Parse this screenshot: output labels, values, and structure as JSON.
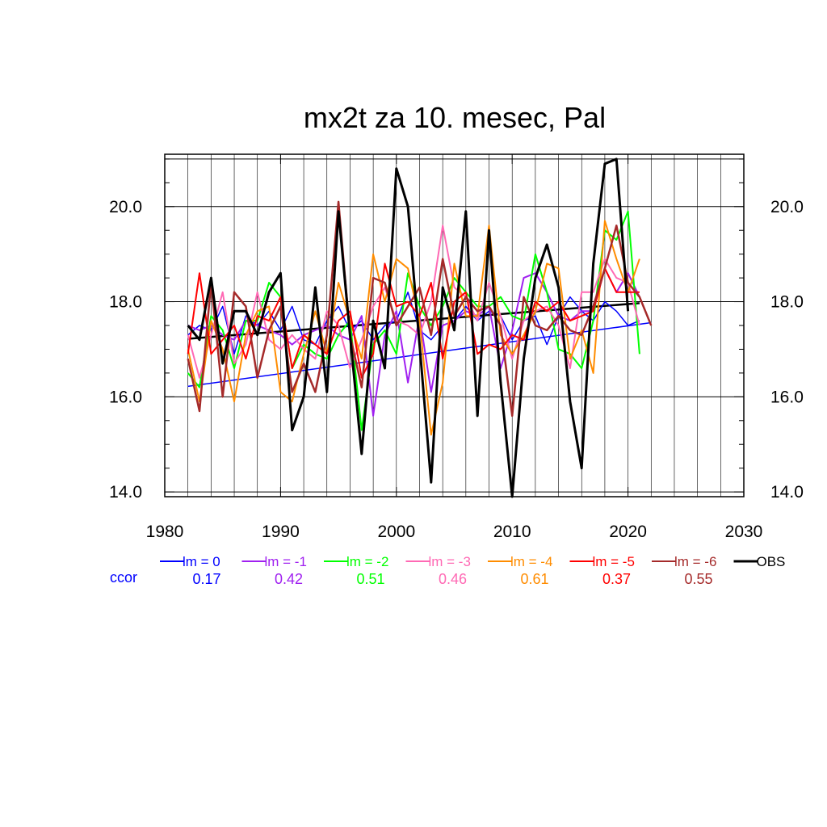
{
  "chart_data": {
    "type": "line",
    "title": "mx2t za 10. mesec, Pal",
    "xlabel": "",
    "ylabel": "",
    "xlim": [
      1980,
      2030
    ],
    "ylim": [
      13.9,
      21.1
    ],
    "x_ticks": [
      1980,
      1990,
      2000,
      2010,
      2020,
      2030
    ],
    "x_tick_labels": [
      "1980",
      "1990",
      "2000",
      "2010",
      "2020",
      "2030"
    ],
    "y_ticks": [
      14,
      16,
      18,
      20
    ],
    "y_tick_labels": [
      "14.0",
      "16.0",
      "18.0",
      "20.0"
    ],
    "y_tick_labels_right": [
      "14.0",
      "16.0",
      "18.0",
      "20.0"
    ],
    "x_minor_step": 2,
    "y_minor_step": 0.5,
    "grid": true,
    "legend_position": "bottom",
    "ccor_label": "ccor",
    "ccor_color": "#0000ff",
    "series": [
      {
        "name": "lm = 0",
        "color": "#0000ff",
        "width": 1.5,
        "ccor": "0.17",
        "x": [
          1982,
          1983,
          1984,
          1985,
          1986,
          1987,
          1988,
          1989,
          1990,
          1991,
          1992,
          1993,
          1994,
          1995,
          1996,
          1997,
          1998,
          1999,
          2000,
          2001,
          2002,
          2003,
          2004,
          2005,
          2006,
          2007,
          2008,
          2009,
          2010,
          2011,
          2012,
          2013,
          2014,
          2015,
          2016,
          2017,
          2018,
          2019,
          2020,
          2021
        ],
        "y": [
          17.3,
          17.5,
          17.4,
          17.9,
          16.9,
          17.7,
          17.5,
          17.8,
          17.4,
          17.9,
          17.2,
          17.1,
          17.6,
          17.9,
          17.4,
          17.6,
          17.2,
          17.5,
          17.6,
          18.2,
          17.4,
          17.2,
          17.5,
          17.6,
          17.9,
          17.6,
          17.8,
          17.7,
          17.2,
          17.6,
          17.7,
          17.1,
          17.7,
          18.1,
          17.8,
          17.6,
          18.0,
          17.8,
          17.5,
          17.6
        ],
        "trend": [
          16.22,
          17.56
        ]
      },
      {
        "name": "lm = -1",
        "color": "#a020f0",
        "width": 2,
        "ccor": "0.42",
        "x": [
          1982,
          1983,
          1984,
          1985,
          1986,
          1987,
          1988,
          1989,
          1990,
          1991,
          1992,
          1993,
          1994,
          1995,
          1996,
          1997,
          1998,
          1999,
          2000,
          2001,
          2002,
          2003,
          2004,
          2005,
          2006,
          2007,
          2008,
          2009,
          2010,
          2011,
          2012,
          2013,
          2014,
          2015,
          2016,
          2017,
          2018,
          2019,
          2020,
          2021
        ],
        "y": [
          17.5,
          17.4,
          17.5,
          17.3,
          17.2,
          17.6,
          17.5,
          17.4,
          17.3,
          17.1,
          17.3,
          17.4,
          17.5,
          17.3,
          17.2,
          17.7,
          15.6,
          17.3,
          17.8,
          16.3,
          17.7,
          16.1,
          17.5,
          17.6,
          17.8,
          17.7,
          17.9,
          16.6,
          17.4,
          18.5,
          18.6,
          18.2,
          17.7,
          17.6,
          17.8,
          17.8,
          18.7,
          18.2,
          18.6,
          18.1
        ]
      },
      {
        "name": "lm = -2",
        "color": "#00ff00",
        "width": 2,
        "ccor": "0.51",
        "x": [
          1982,
          1983,
          1984,
          1985,
          1986,
          1987,
          1988,
          1989,
          1990,
          1991,
          1992,
          1993,
          1994,
          1995,
          1996,
          1997,
          1998,
          1999,
          2000,
          2001,
          2002,
          2003,
          2004,
          2005,
          2006,
          2007,
          2008,
          2009,
          2010,
          2011,
          2012,
          2013,
          2014,
          2015,
          2016,
          2017,
          2018,
          2019,
          2020,
          2021
        ],
        "y": [
          16.5,
          16.2,
          17.7,
          17.4,
          16.6,
          17.6,
          17.6,
          18.4,
          18.1,
          16.6,
          17.1,
          16.9,
          16.8,
          17.3,
          17.6,
          15.3,
          17.1,
          17.4,
          16.9,
          18.6,
          17.9,
          17.5,
          17.9,
          18.5,
          18.2,
          17.9,
          17.9,
          18.1,
          17.7,
          17.6,
          19.0,
          18.2,
          17.0,
          16.9,
          16.6,
          17.6,
          19.5,
          19.3,
          19.9,
          16.9
        ]
      },
      {
        "name": "lm = -3",
        "color": "#ff69b4",
        "width": 2,
        "ccor": "0.46",
        "x": [
          1982,
          1983,
          1984,
          1985,
          1986,
          1987,
          1988,
          1989,
          1990,
          1991,
          1992,
          1993,
          1994,
          1995,
          1996,
          1997,
          1998,
          1999,
          2000,
          2001,
          2002,
          2003,
          2004,
          2005,
          2006,
          2007,
          2008,
          2009,
          2010,
          2011,
          2012,
          2013,
          2014,
          2015,
          2016,
          2017,
          2018,
          2019,
          2020,
          2021
        ],
        "y": [
          17.3,
          16.4,
          17.3,
          18.2,
          16.7,
          17.1,
          18.2,
          17.2,
          17.0,
          17.3,
          17.0,
          16.8,
          17.8,
          17.5,
          16.6,
          17.2,
          17.9,
          18.3,
          17.6,
          17.5,
          17.3,
          18.0,
          19.6,
          18.3,
          18.1,
          17.6,
          18.4,
          17.7,
          16.8,
          17.6,
          17.8,
          17.9,
          17.5,
          16.6,
          18.2,
          18.2,
          18.9,
          18.5,
          18.4,
          17.5
        ]
      },
      {
        "name": "lm = -4",
        "color": "#ff8c00",
        "width": 2,
        "ccor": "0.61",
        "x": [
          1982,
          1983,
          1984,
          1985,
          1986,
          1987,
          1988,
          1989,
          1990,
          1991,
          1992,
          1993,
          1994,
          1995,
          1996,
          1997,
          1998,
          1999,
          2000,
          2001,
          2002,
          2003,
          2004,
          2005,
          2006,
          2007,
          2008,
          2009,
          2010,
          2011,
          2012,
          2013,
          2014,
          2015,
          2016,
          2017,
          2018,
          2019,
          2020,
          2021
        ],
        "y": [
          17.0,
          15.9,
          17.6,
          17.0,
          15.9,
          17.3,
          17.8,
          17.9,
          16.1,
          15.9,
          16.9,
          17.8,
          16.9,
          18.4,
          17.6,
          16.8,
          19.0,
          18.0,
          18.9,
          18.7,
          17.6,
          15.2,
          16.3,
          18.8,
          17.7,
          17.7,
          19.6,
          17.3,
          16.9,
          17.3,
          17.8,
          18.8,
          18.7,
          16.8,
          17.4,
          16.5,
          19.7,
          18.9,
          18.2,
          18.9
        ]
      },
      {
        "name": "lm = -5",
        "color": "#ff0000",
        "width": 2,
        "ccor": "0.37",
        "x": [
          1982,
          1983,
          1984,
          1985,
          1986,
          1987,
          1988,
          1989,
          1990,
          1991,
          1992,
          1993,
          1994,
          1995,
          1996,
          1997,
          1998,
          1999,
          2000,
          2001,
          2002,
          2003,
          2004,
          2005,
          2006,
          2007,
          2008,
          2009,
          2010,
          2011,
          2012,
          2013,
          2014,
          2015,
          2016,
          2017,
          2018,
          2019,
          2020,
          2021
        ],
        "y": [
          16.9,
          18.6,
          16.9,
          17.2,
          17.5,
          16.8,
          17.7,
          17.6,
          18.1,
          16.6,
          17.3,
          17.1,
          16.9,
          17.6,
          17.8,
          16.4,
          16.9,
          18.8,
          17.9,
          18.0,
          17.7,
          18.4,
          16.8,
          18.0,
          18.2,
          16.9,
          17.1,
          17.0,
          17.3,
          17.2,
          18.0,
          17.8,
          18.0,
          17.6,
          17.7,
          17.8,
          18.7,
          18.2,
          18.2,
          18.2
        ]
      },
      {
        "name": "lm = -6",
        "color": "#a52a2a",
        "width": 2.5,
        "ccor": "0.55",
        "x": [
          1982,
          1983,
          1984,
          1985,
          1986,
          1987,
          1988,
          1989,
          1990,
          1991,
          1992,
          1993,
          1994,
          1995,
          1996,
          1997,
          1998,
          1999,
          2000,
          2001,
          2002,
          2003,
          2004,
          2005,
          2006,
          2007,
          2008,
          2009,
          2010,
          2011,
          2012,
          2013,
          2014,
          2015,
          2016,
          2017,
          2018,
          2019,
          2020,
          2021,
          2022
        ],
        "y": [
          16.8,
          15.7,
          18.4,
          16.0,
          18.2,
          17.9,
          16.4,
          17.4,
          17.9,
          16.1,
          16.7,
          16.1,
          17.3,
          20.1,
          17.3,
          16.2,
          18.5,
          18.4,
          17.5,
          17.9,
          18.3,
          17.3,
          18.9,
          17.7,
          18.1,
          17.8,
          17.9,
          17.5,
          15.6,
          18.1,
          17.5,
          17.4,
          17.7,
          17.4,
          17.3,
          17.9,
          18.7,
          19.6,
          18.4,
          18.1,
          17.5
        ]
      },
      {
        "name": "OBS",
        "color": "#000000",
        "width": 3,
        "ccor": "",
        "x": [
          1982,
          1983,
          1984,
          1985,
          1986,
          1987,
          1988,
          1989,
          1990,
          1991,
          1992,
          1993,
          1994,
          1995,
          1996,
          1997,
          1998,
          1999,
          2000,
          2001,
          2002,
          2003,
          2004,
          2005,
          2006,
          2007,
          2008,
          2009,
          2010,
          2011,
          2012,
          2013,
          2014,
          2015,
          2016,
          2017,
          2018,
          2019,
          2020
        ],
        "y": [
          17.5,
          17.2,
          18.5,
          16.7,
          17.8,
          17.8,
          17.3,
          18.2,
          18.6,
          15.3,
          16.0,
          18.3,
          16.1,
          19.9,
          17.3,
          14.8,
          17.6,
          16.6,
          20.8,
          20.0,
          17.1,
          14.2,
          18.3,
          17.4,
          19.9,
          15.6,
          19.5,
          16.3,
          13.9,
          16.8,
          18.5,
          19.2,
          18.3,
          15.9,
          14.5,
          18.8,
          20.9,
          21.0,
          17.8
        ],
        "trend": [
          17.22,
          17.97
        ]
      }
    ]
  }
}
